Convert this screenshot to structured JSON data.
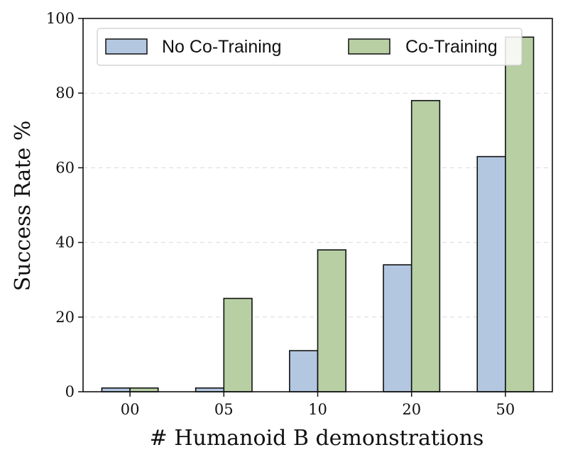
{
  "chart_data": {
    "type": "bar",
    "title": "",
    "xlabel": "# Humanoid B demonstrations",
    "ylabel": "Success Rate %",
    "categories": [
      "00",
      "05",
      "10",
      "20",
      "50"
    ],
    "series": [
      {
        "name": "No Co-Training",
        "color": "#b3c7e1",
        "values": [
          1,
          1,
          11,
          34,
          63
        ]
      },
      {
        "name": "Co-Training",
        "color": "#b7cfa3",
        "values": [
          1,
          25,
          38,
          78,
          95
        ]
      }
    ],
    "ylim": [
      0,
      100
    ],
    "yticks": [
      0,
      20,
      40,
      60,
      80,
      100
    ],
    "grid": true,
    "legend_position": "top"
  }
}
